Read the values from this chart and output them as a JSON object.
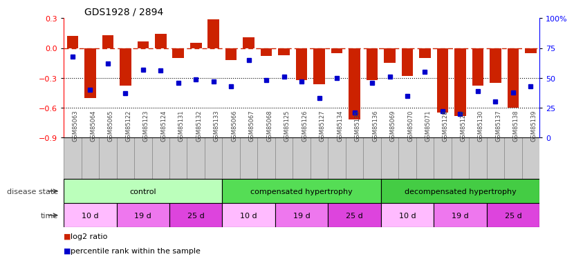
{
  "title": "GDS1928 / 2894",
  "samples": [
    "GSM85063",
    "GSM85064",
    "GSM85065",
    "GSM85122",
    "GSM85123",
    "GSM85124",
    "GSM85131",
    "GSM85132",
    "GSM85133",
    "GSM85066",
    "GSM85067",
    "GSM85068",
    "GSM85125",
    "GSM85126",
    "GSM85127",
    "GSM85134",
    "GSM85135",
    "GSM85136",
    "GSM85069",
    "GSM85070",
    "GSM85071",
    "GSM85128",
    "GSM85129",
    "GSM85130",
    "GSM85137",
    "GSM85138",
    "GSM85139"
  ],
  "log2_ratio": [
    0.12,
    -0.5,
    0.13,
    -0.38,
    0.07,
    0.14,
    -0.1,
    0.05,
    0.29,
    -0.12,
    0.11,
    -0.08,
    -0.07,
    -0.32,
    -0.36,
    -0.05,
    -0.72,
    -0.32,
    -0.15,
    -0.28,
    -0.1,
    -0.65,
    -0.68,
    -0.38,
    -0.35,
    -0.6,
    -0.05
  ],
  "percentile": [
    68,
    40,
    62,
    37,
    57,
    56,
    46,
    49,
    47,
    43,
    65,
    48,
    51,
    47,
    33,
    50,
    21,
    46,
    51,
    35,
    55,
    22,
    20,
    39,
    30,
    38,
    43
  ],
  "bar_color": "#cc2200",
  "dot_color": "#0000cc",
  "dashed_line_y": 0.0,
  "dashed_line_color": "#cc2200",
  "dotted_lines": [
    -0.3,
    -0.6
  ],
  "ylim_left": [
    -0.9,
    0.3
  ],
  "ylim_right": [
    0,
    100
  ],
  "right_ticks": [
    0,
    25,
    50,
    75,
    100
  ],
  "right_tick_labels": [
    "0",
    "25",
    "50",
    "75",
    "100%"
  ],
  "left_ticks": [
    -0.9,
    -0.6,
    -0.3,
    0.0,
    0.3
  ],
  "disease_groups": [
    {
      "label": "control",
      "start": 0,
      "end": 9,
      "color": "#bbffbb"
    },
    {
      "label": "compensated hypertrophy",
      "start": 9,
      "end": 18,
      "color": "#55dd55"
    },
    {
      "label": "decompensated hypertrophy",
      "start": 18,
      "end": 27,
      "color": "#44cc44"
    }
  ],
  "time_groups": [
    {
      "label": "10 d",
      "start": 0,
      "end": 3,
      "color": "#ffbbff"
    },
    {
      "label": "19 d",
      "start": 3,
      "end": 6,
      "color": "#ee77ee"
    },
    {
      "label": "25 d",
      "start": 6,
      "end": 9,
      "color": "#dd44dd"
    },
    {
      "label": "10 d",
      "start": 9,
      "end": 12,
      "color": "#ffbbff"
    },
    {
      "label": "19 d",
      "start": 12,
      "end": 15,
      "color": "#ee77ee"
    },
    {
      "label": "25 d",
      "start": 15,
      "end": 18,
      "color": "#dd44dd"
    },
    {
      "label": "10 d",
      "start": 18,
      "end": 21,
      "color": "#ffbbff"
    },
    {
      "label": "19 d",
      "start": 21,
      "end": 24,
      "color": "#ee77ee"
    },
    {
      "label": "25 d",
      "start": 24,
      "end": 27,
      "color": "#dd44dd"
    }
  ],
  "legend_items": [
    {
      "label": "log2 ratio",
      "color": "#cc2200"
    },
    {
      "label": "percentile rank within the sample",
      "color": "#0000cc"
    }
  ],
  "disease_label": "disease state",
  "time_label": "time",
  "bg_color": "#ffffff",
  "axis_label_color": "#444444",
  "sample_label_color": "#444444",
  "sample_bg_color": "#cccccc"
}
